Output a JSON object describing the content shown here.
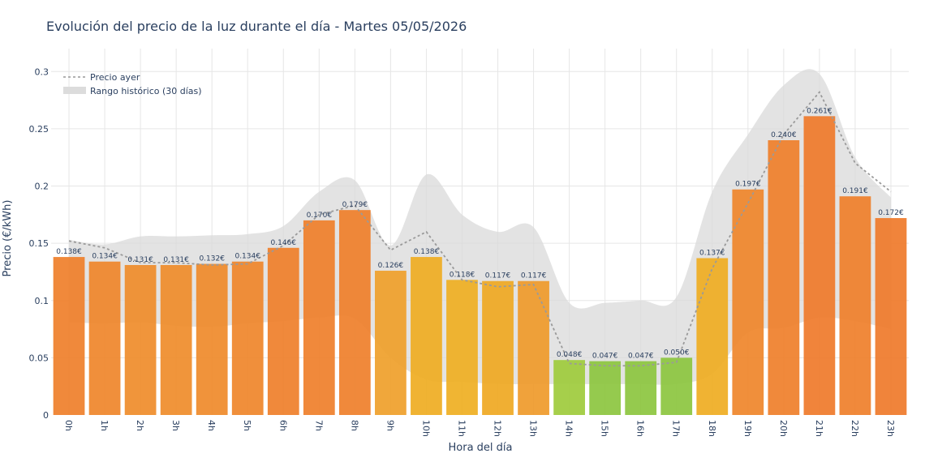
{
  "chart_data": {
    "type": "bar",
    "title": "Evolución del precio de la luz durante el día - Martes 05/05/2026",
    "xlabel": "Hora del día",
    "ylabel": "Precio (€/kWh)",
    "ylim": [
      0,
      0.32
    ],
    "yticks": [
      "0",
      "0.05",
      "0.1",
      "0.15",
      "0.2",
      "0.25",
      "0.3"
    ],
    "ytick_values": [
      0,
      0.05,
      0.1,
      0.15,
      0.2,
      0.25,
      0.3
    ],
    "grid": true,
    "legend_position": "top-left",
    "categories": [
      "0h",
      "1h",
      "2h",
      "3h",
      "4h",
      "5h",
      "6h",
      "7h",
      "8h",
      "9h",
      "10h",
      "11h",
      "12h",
      "13h",
      "14h",
      "15h",
      "16h",
      "17h",
      "18h",
      "19h",
      "20h",
      "21h",
      "22h",
      "23h"
    ],
    "series": [
      {
        "kind": "bar",
        "values": [
          0.138,
          0.134,
          0.131,
          0.131,
          0.132,
          0.134,
          0.146,
          0.17,
          0.179,
          0.126,
          0.138,
          0.118,
          0.117,
          0.117,
          0.048,
          0.047,
          0.047,
          0.05,
          0.137,
          0.197,
          0.24,
          0.261,
          0.191,
          0.172
        ],
        "labels": [
          "0.138€",
          "0.134€",
          "0.131€",
          "0.131€",
          "0.132€",
          "0.134€",
          "0.146€",
          "0.170€",
          "0.179€",
          "0.126€",
          "0.138€",
          "0.118€",
          "0.117€",
          "0.117€",
          "0.048€",
          "0.047€",
          "0.047€",
          "0.050€",
          "0.137€",
          "0.197€",
          "0.240€",
          "0.261€",
          "0.191€",
          "0.172€"
        ],
        "colors": [
          "#ef7f2a",
          "#ef852a",
          "#ef8c2a",
          "#ef8c2a",
          "#ef8a2a",
          "#ef852a",
          "#ef7f2a",
          "#ef7f2a",
          "#ef7f2a",
          "#efa02a",
          "#efad22",
          "#efaf22",
          "#efa822",
          "#ef9a2a",
          "#9ecb3c",
          "#8cc63f",
          "#8cc63f",
          "#8cc63f",
          "#efad22",
          "#ef852a",
          "#ef7f2a",
          "#ef7a2a",
          "#ef7f2a",
          "#ef7a2a"
        ]
      },
      {
        "name": "Precio ayer",
        "kind": "line",
        "values": [
          0.152,
          0.146,
          0.133,
          0.133,
          0.131,
          0.132,
          0.148,
          0.175,
          0.183,
          0.144,
          0.16,
          0.118,
          0.112,
          0.114,
          0.045,
          0.043,
          0.043,
          0.046,
          0.128,
          0.185,
          0.245,
          0.282,
          0.22,
          0.195
        ]
      },
      {
        "name": "Rango histórico (30 días)",
        "kind": "band",
        "upper": [
          0.153,
          0.149,
          0.156,
          0.156,
          0.157,
          0.158,
          0.165,
          0.195,
          0.205,
          0.148,
          0.21,
          0.175,
          0.16,
          0.164,
          0.098,
          0.098,
          0.1,
          0.103,
          0.195,
          0.245,
          0.288,
          0.298,
          0.225,
          0.19
        ],
        "lower": [
          0.081,
          0.08,
          0.081,
          0.078,
          0.077,
          0.08,
          0.082,
          0.085,
          0.084,
          0.05,
          0.031,
          0.029,
          0.027,
          0.027,
          0.027,
          0.027,
          0.027,
          0.027,
          0.036,
          0.072,
          0.076,
          0.085,
          0.082,
          0.075
        ]
      }
    ]
  }
}
